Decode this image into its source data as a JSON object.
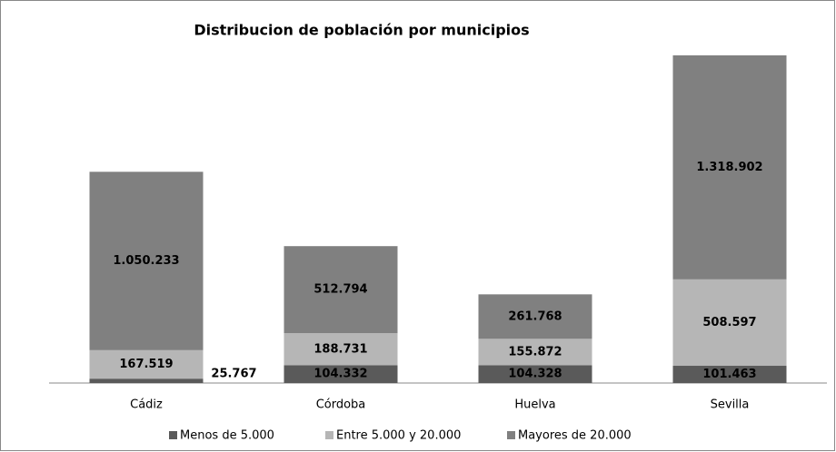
{
  "chart_data": {
    "type": "bar",
    "stacked": true,
    "title": "Distribucion de población por municipios",
    "categories": [
      "Cádiz",
      "Córdoba",
      "Huelva",
      "Sevilla"
    ],
    "series": [
      {
        "name": "Menos de 5.000",
        "color": "#5a5a5a",
        "values": [
          25767,
          104332,
          104328,
          101463
        ],
        "value_labels": [
          "25.767",
          "104.332",
          "104.328",
          "101.463"
        ]
      },
      {
        "name": "Entre 5.000 y 20.000",
        "color": "#b6b6b6",
        "values": [
          167519,
          188731,
          155872,
          508597
        ],
        "value_labels": [
          "167.519",
          "188.731",
          "155.872",
          "508.597"
        ]
      },
      {
        "name": "Mayores de 20.000",
        "color": "#808080",
        "values": [
          1050233,
          512794,
          261768,
          1318902
        ],
        "value_labels": [
          "1.050.233",
          "512.794",
          "261.768",
          "1.318.902"
        ]
      }
    ]
  }
}
